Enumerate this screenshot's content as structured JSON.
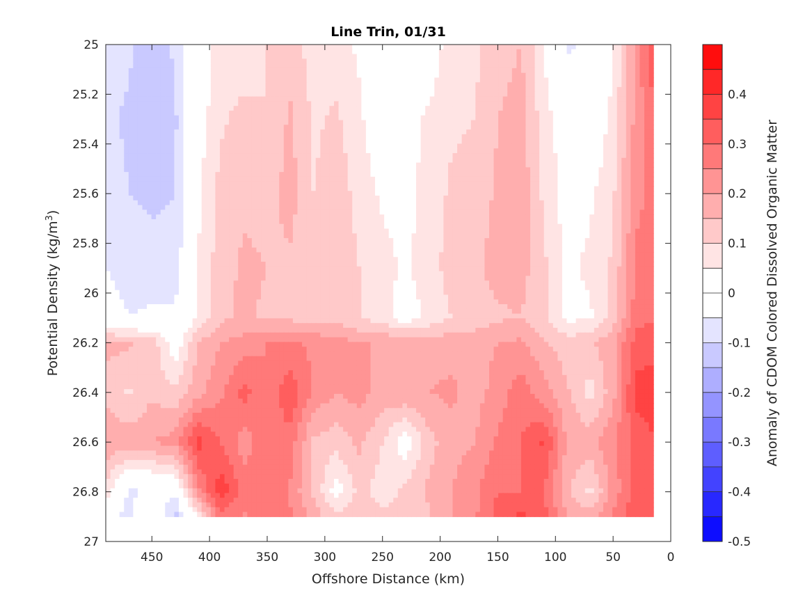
{
  "chart_data": {
    "type": "heatmap",
    "title": "Line Trin, 01/31",
    "xlabel": "Offshore Distance (km)",
    "ylabel_main": "Potential Density (kg/m",
    "ylabel_sup": "3",
    "ylabel_close": ")",
    "xlim": [
      490,
      0
    ],
    "ylim": [
      25,
      27
    ],
    "x_ticks": [
      "450",
      "400",
      "350",
      "300",
      "250",
      "200",
      "150",
      "100",
      "50",
      "0"
    ],
    "y_ticks": [
      "25",
      "25.2",
      "25.4",
      "25.6",
      "25.8",
      "26",
      "26.2",
      "26.4",
      "26.6",
      "26.8",
      "27"
    ],
    "colorbar": {
      "label": "Anomaly of CDOM Colored Dissolved Organic Matter",
      "ticks": [
        "0.4",
        "0.3",
        "0.2",
        "0.1",
        "0",
        "-0.1",
        "-0.2",
        "-0.3",
        "-0.4",
        "-0.5"
      ],
      "range": [
        -0.5,
        0.5
      ],
      "levels": 20
    },
    "colors": {
      "zero": "#ffffff",
      "positive_max": "#ff0000",
      "negative_max": "#0000ff",
      "contour_line": "#000000"
    },
    "x_nodes": [
      490,
      470,
      450,
      430,
      410,
      390,
      370,
      350,
      330,
      310,
      290,
      270,
      250,
      230,
      210,
      190,
      170,
      150,
      130,
      110,
      90,
      70,
      50,
      30,
      15
    ],
    "y_nodes": [
      25.0,
      25.3,
      25.6,
      25.9,
      26.1,
      26.2,
      26.4,
      26.6,
      26.8,
      26.9
    ],
    "anomaly_grid": [
      [
        -0.05,
        -0.09,
        -0.15,
        -0.09,
        0.02,
        0.07,
        0.06,
        0.1,
        0.12,
        0.08,
        0.07,
        0.04,
        0.01,
        -0.03,
        0.01,
        0.08,
        0.09,
        0.12,
        0.15,
        0.05,
        -0.06,
        -0.04,
        0.04,
        0.22,
        0.35
      ],
      [
        -0.09,
        -0.11,
        -0.11,
        -0.11,
        0.02,
        0.09,
        0.12,
        0.1,
        0.16,
        0.09,
        0.11,
        0.06,
        0.0,
        0.03,
        0.06,
        0.09,
        0.1,
        0.15,
        0.18,
        0.07,
        0.02,
        -0.01,
        0.07,
        0.22,
        0.28
      ],
      [
        -0.07,
        -0.1,
        -0.11,
        -0.1,
        0.04,
        0.12,
        0.14,
        0.13,
        0.17,
        0.1,
        0.13,
        0.08,
        0.04,
        0.03,
        0.07,
        0.11,
        0.12,
        0.16,
        0.18,
        0.09,
        0.02,
        0.04,
        0.09,
        0.24,
        0.26
      ],
      [
        -0.05,
        -0.07,
        -0.08,
        -0.08,
        0.05,
        0.13,
        0.16,
        0.15,
        0.14,
        0.12,
        0.14,
        0.1,
        0.07,
        0.04,
        0.08,
        0.12,
        0.14,
        0.17,
        0.17,
        0.11,
        0.04,
        0.06,
        0.11,
        0.26,
        0.26
      ],
      [
        -0.02,
        -0.05,
        -0.04,
        -0.04,
        0.06,
        0.14,
        0.16,
        0.14,
        0.14,
        0.12,
        0.13,
        0.1,
        0.07,
        0.02,
        0.06,
        0.1,
        0.12,
        0.14,
        0.15,
        0.11,
        0.04,
        0.04,
        0.12,
        0.28,
        0.3
      ],
      [
        0.16,
        0.16,
        0.13,
        0.01,
        0.15,
        0.2,
        0.22,
        0.25,
        0.26,
        0.24,
        0.22,
        0.2,
        0.2,
        0.18,
        0.18,
        0.18,
        0.18,
        0.2,
        0.21,
        0.16,
        0.12,
        0.14,
        0.19,
        0.32,
        0.32
      ],
      [
        0.14,
        0.09,
        0.14,
        0.11,
        0.18,
        0.24,
        0.32,
        0.25,
        0.34,
        0.24,
        0.2,
        0.22,
        0.18,
        0.2,
        0.2,
        0.21,
        0.18,
        0.22,
        0.28,
        0.22,
        0.16,
        0.08,
        0.18,
        0.37,
        0.39
      ],
      [
        0.19,
        0.18,
        0.2,
        0.22,
        0.37,
        0.3,
        0.22,
        0.3,
        0.28,
        0.14,
        0.12,
        0.16,
        0.1,
        0.01,
        0.13,
        0.18,
        0.2,
        0.26,
        0.3,
        0.36,
        0.19,
        0.18,
        0.24,
        0.32,
        0.34
      ],
      [
        0.08,
        -0.06,
        -0.05,
        -0.04,
        0.23,
        0.39,
        0.28,
        0.3,
        0.24,
        0.14,
        0.02,
        0.12,
        0.07,
        0.12,
        0.16,
        0.2,
        0.24,
        0.3,
        0.3,
        0.3,
        0.16,
        0.08,
        0.22,
        0.32,
        0.34
      ],
      [
        -0.04,
        -0.07,
        0.06,
        -0.12,
        0.05,
        0.28,
        0.24,
        0.3,
        0.26,
        0.18,
        0.12,
        0.14,
        0.12,
        0.1,
        0.14,
        0.2,
        0.24,
        0.32,
        0.36,
        0.32,
        0.2,
        0.18,
        0.26,
        0.34,
        0.34
      ]
    ]
  }
}
